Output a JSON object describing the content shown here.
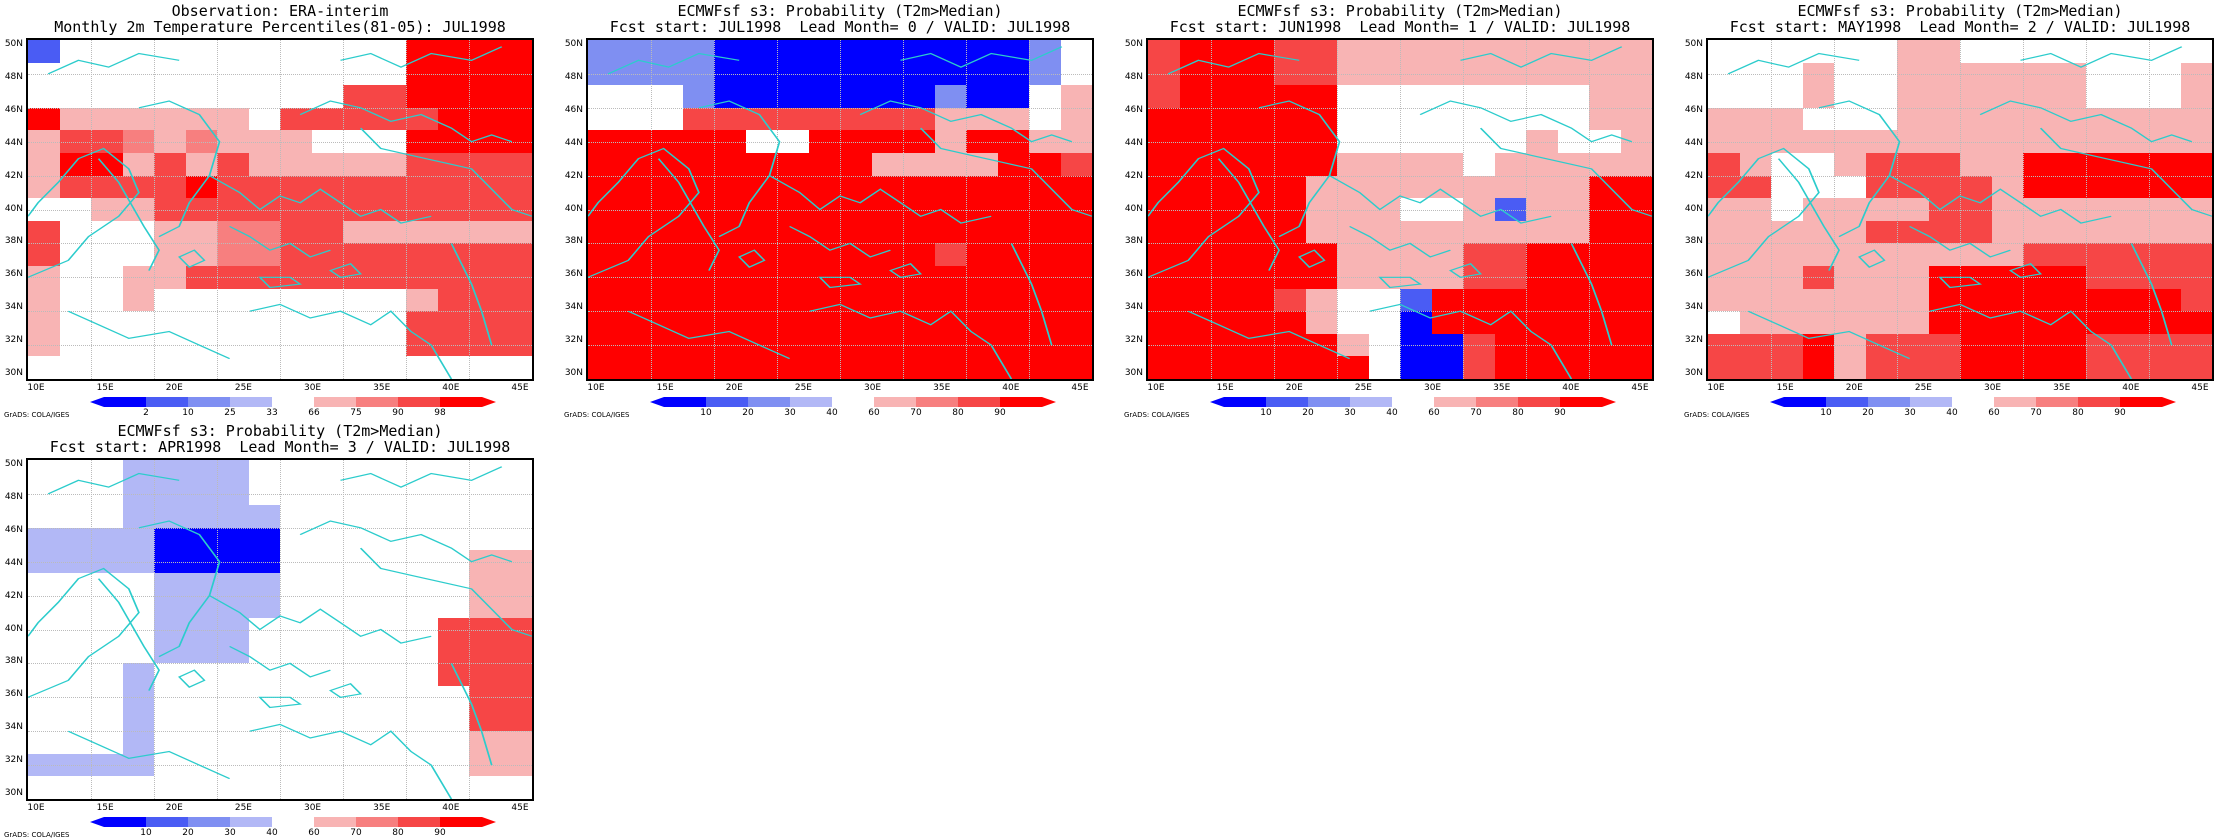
{
  "colors": {
    "c1": "#0000ff",
    "c2": "#4a5cf4",
    "c3": "#7f8ff2",
    "c4": "#b2b8f6",
    "c5": "#ffffff",
    "c6": "#f8b4b4",
    "c7": "#f77f7f",
    "c8": "#f64646",
    "c9": "#ff0000",
    "coast": "#2ccccc"
  },
  "y_ticks": [
    "50N",
    "48N",
    "46N",
    "44N",
    "42N",
    "40N",
    "38N",
    "36N",
    "34N",
    "32N",
    "30N"
  ],
  "x_ticks": [
    "10E",
    "15E",
    "20E",
    "25E",
    "30E",
    "35E",
    "40E",
    "45E"
  ],
  "grads_label": "GrADS: COLA/IGES",
  "panels": [
    {
      "title1": "Observation: ERA-interim",
      "title2": "Monthly 2m Temperature Percentiles(81-05): JUL1998",
      "colorbar_labels": [
        "2",
        "10",
        "25",
        "33",
        "66",
        "75",
        "90",
        "98"
      ],
      "grid": [
        "2555555555559999",
        "5555555555559999",
        "5555555555889999",
        "9666666588888999",
        "6887676665559999",
        "6996868666668888",
        "6888898888888888",
        "5566888888888888",
        "8555667788666666",
        "8555667788888888",
        "6556688888888888",
        "6556555555556888",
        "6555555555558888",
        "6555555555558888",
        "5555555555555555"
      ]
    },
    {
      "title1": "ECMWFsf s3: Probability (T2m>Median)",
      "title2": "Fcst start: JUL1998  Lead Month= 0 / VALID: JUL1998",
      "colorbar_labels": [
        "10",
        "20",
        "30",
        "40",
        "60",
        "70",
        "80",
        "90"
      ],
      "grid": [
        "3333111111111135",
        "3333111111111135",
        "5553111111131156",
        "5558888888866656",
        "9999955999969966",
        "9999999996666998",
        "9999999999999999",
        "9999999999999999",
        "9999999999999999",
        "9999999999989999",
        "9999999999999999",
        "9999999999999999",
        "9999999999999999",
        "9999999999999999",
        "9999999999999999"
      ]
    },
    {
      "title1": "ECMWFsf s3: Probability (T2m>Median)",
      "title2": "Fcst start: JUN1998  Lead Month= 1 / VALID: JUL1998",
      "colorbar_labels": [
        "10",
        "20",
        "30",
        "40",
        "60",
        "70",
        "80",
        "90"
      ],
      "grid": [
        "8999886666666666",
        "8999886666666666",
        "8999995555555566",
        "9999995555555566",
        "9999995555556556",
        "9999996666566666",
        "9999966666666699",
        "9999966655626699",
        "9999966666666699",
        "9999996666889999",
        "9999996666889999",
        "9999865529999999",
        "9999965519999999",
        "9999996511899999",
        "9999999511899999"
      ]
    },
    {
      "title1": "ECMWFsf s3: Probability (T2m>Median)",
      "title2": "Fcst start: MAY1998  Lead Month= 2 / VALID: JUL1998",
      "colorbar_labels": [
        "10",
        "20",
        "30",
        "40",
        "60",
        "70",
        "80",
        "90"
      ],
      "grid": [
        "5555556655555555",
        "5556556666665556",
        "5556556666665556",
        "6665556666666666",
        "6666666666666666",
        "8655688866999999",
        "8855588886999999",
        "6656666886666666",
        "6666688886666666",
        "6666666666888888",
        "6668666999998888",
        "6666666999999998",
        "5666666999999999",
        "8889688899998888",
        "8889688899998888"
      ]
    },
    {
      "title1": "ECMWFsf s3: Probability (T2m>Median)",
      "title2": "Fcst start: APR1998  Lead Month= 3 / VALID: JUL1998",
      "colorbar_labels": [
        "10",
        "20",
        "30",
        "40",
        "60",
        "70",
        "80",
        "90"
      ],
      "grid": [
        "5554444555555555",
        "5554444555555555",
        "5554444455555555",
        "4444111155555555",
        "4444111155555566",
        "5555444455555566",
        "5555444455555566",
        "5555444555555888",
        "5555444555555888",
        "5554555555555888",
        "5554555555555588",
        "5554555555555588",
        "5554555555555566",
        "4444555555555566",
        "5555555555555555"
      ]
    }
  ]
}
